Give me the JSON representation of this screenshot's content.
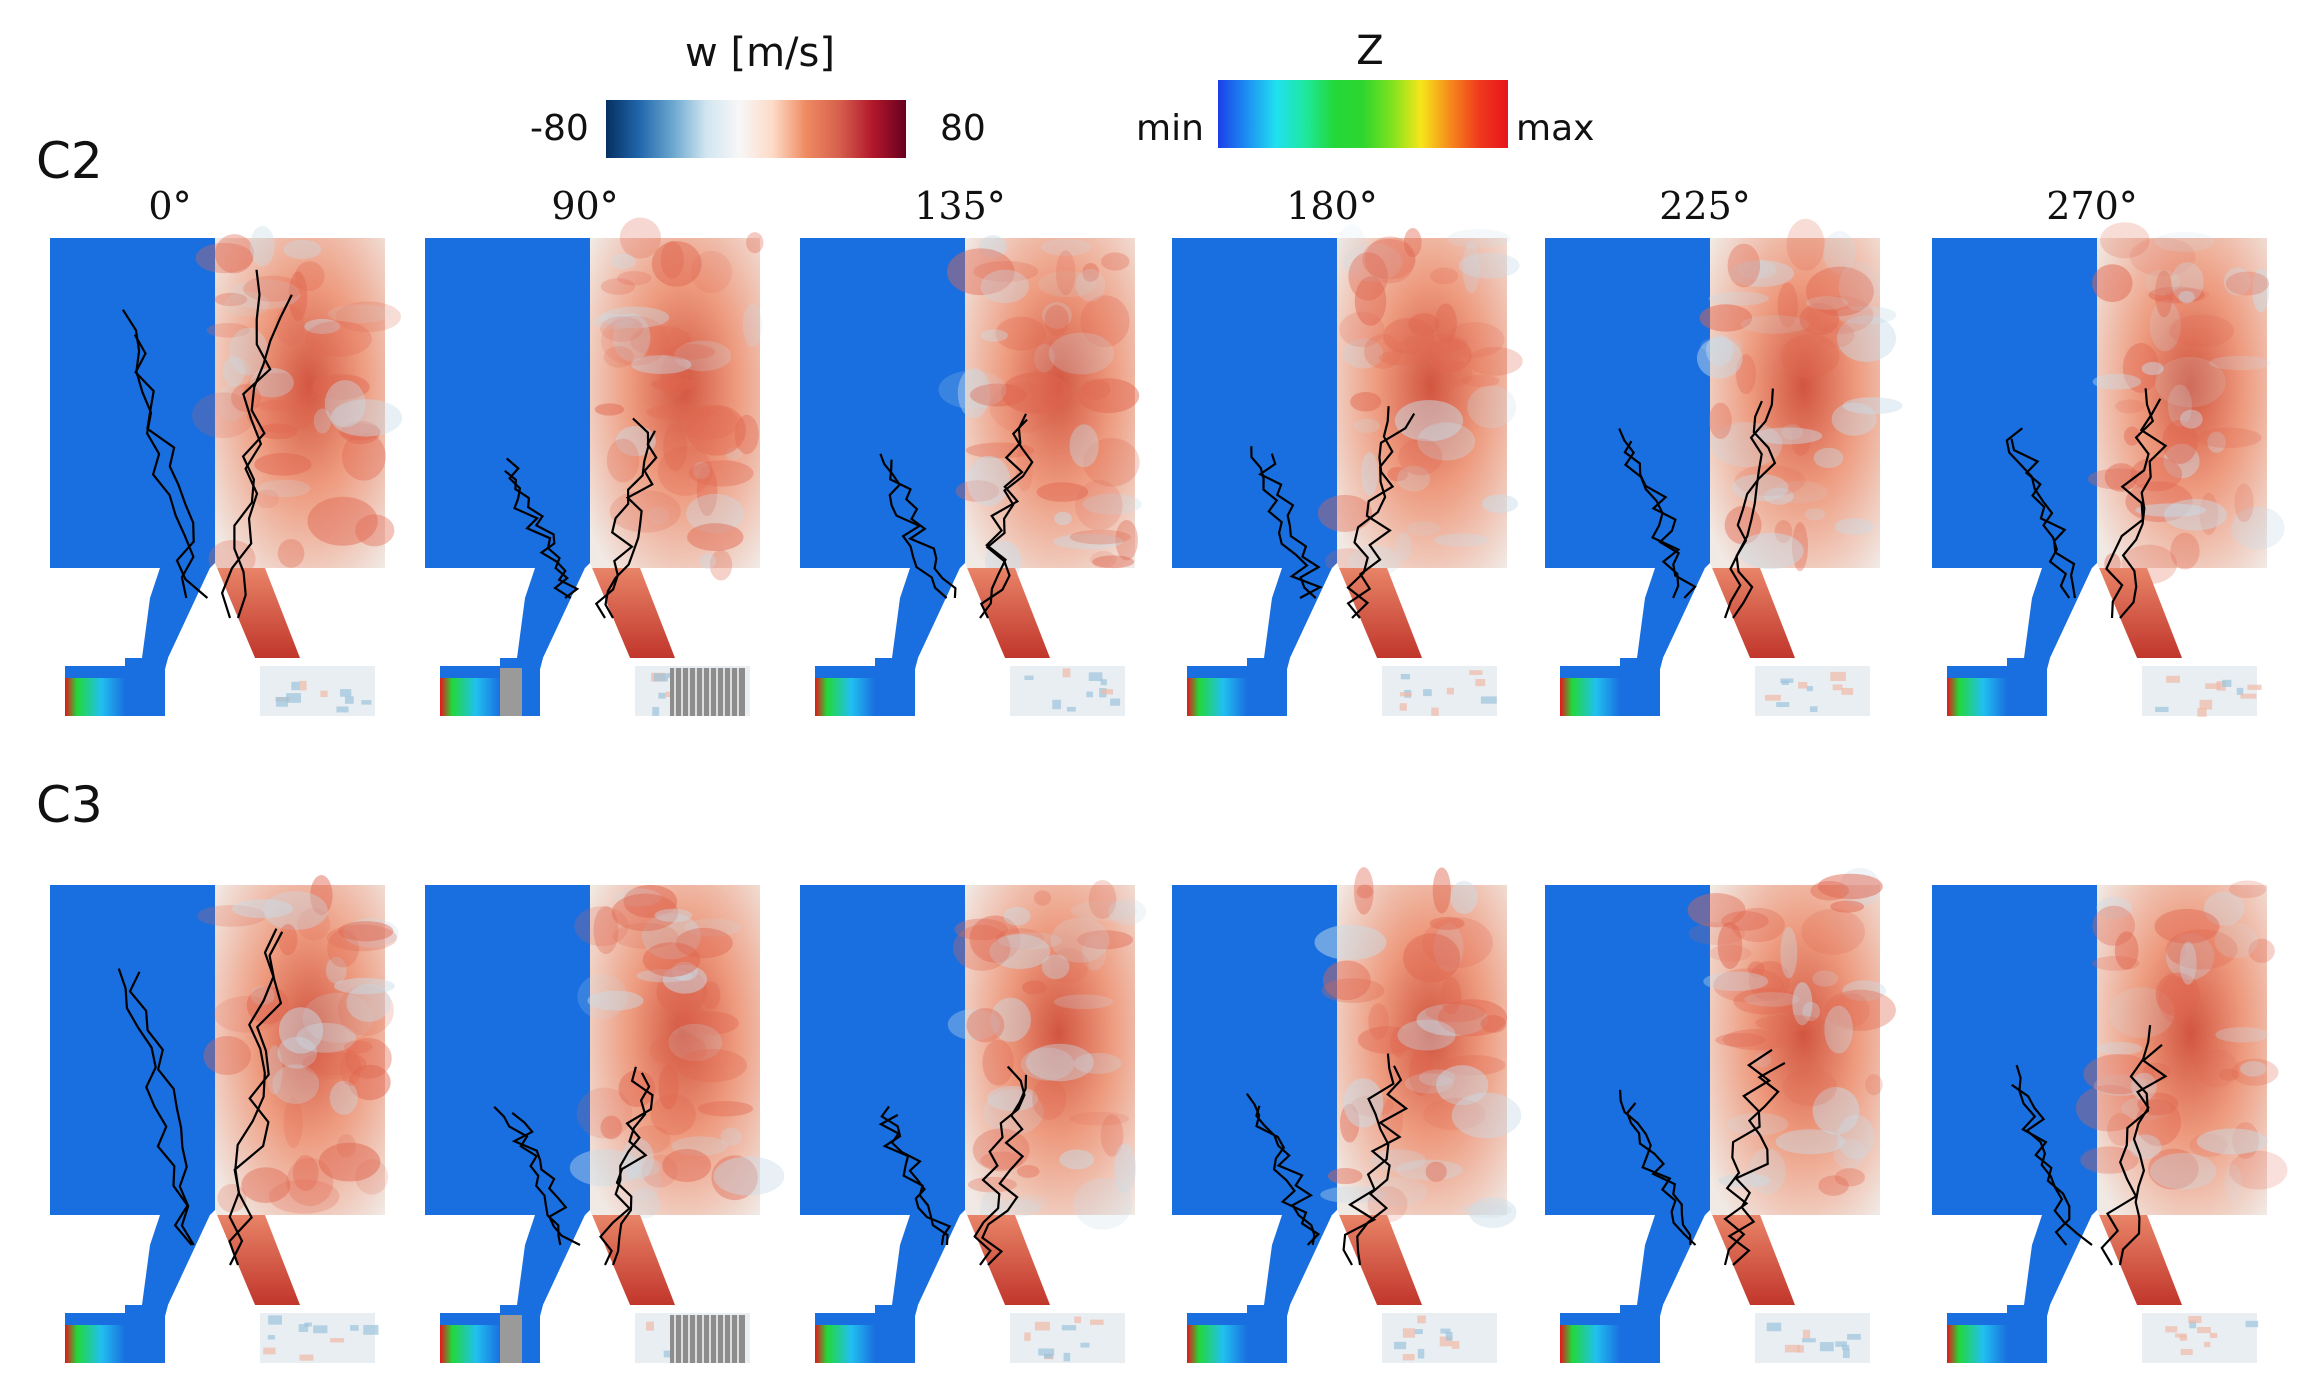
{
  "colorbars": {
    "velocity": {
      "title": "w [m/s]",
      "min_label": "-80",
      "max_label": "80",
      "colors": [
        "#053061",
        "#2166ac",
        "#6aa7cf",
        "#d1e5f0",
        "#f7f7f7",
        "#fddbc7",
        "#ef8a62",
        "#d6604d",
        "#b2182b",
        "#67001f"
      ]
    },
    "mixture_fraction": {
      "title": "Z",
      "min_label": "min",
      "max_label": "max",
      "colors": [
        "#1c3fe8",
        "#1c8ff2",
        "#21e0f0",
        "#1ee8a0",
        "#22d83a",
        "#2ed62e",
        "#7fe21e",
        "#f7e61a",
        "#f68a1c",
        "#ef3a1e",
        "#e8131c"
      ]
    }
  },
  "rows": [
    {
      "label": "C2",
      "angles": [
        "0°",
        "90°",
        "135°",
        "180°",
        "225°",
        "270°"
      ]
    },
    {
      "label": "C3",
      "angles": [
        "",
        "",
        "",
        "",
        "",
        ""
      ]
    }
  ],
  "colors": {
    "mixture_background": "#1a6fe0",
    "contour": "#000000",
    "velocity_base": "#f3e4dc"
  }
}
